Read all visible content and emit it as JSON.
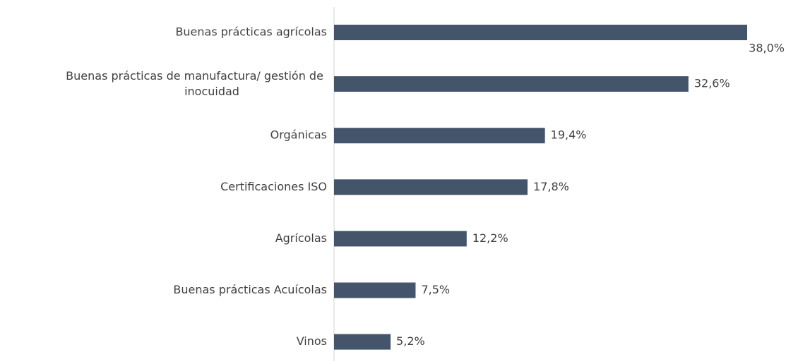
{
  "chart_data": {
    "type": "bar",
    "orientation": "horizontal",
    "categories": [
      "Buenas prácticas agrícolas",
      "Buenas prácticas de manufactura/ gestión de inocuidad",
      "Orgánicas",
      "Certificaciones ISO",
      "Agrícolas",
      "Buenas prácticas Acuícolas",
      "Vinos"
    ],
    "values": [
      38.0,
      32.6,
      19.4,
      17.8,
      12.2,
      7.5,
      5.2
    ],
    "value_labels": [
      "38,0%",
      "32,6%",
      "19,4%",
      "17,8%",
      "12,2%",
      "7,5%",
      "5,2%"
    ],
    "color": "#44546a"
  }
}
